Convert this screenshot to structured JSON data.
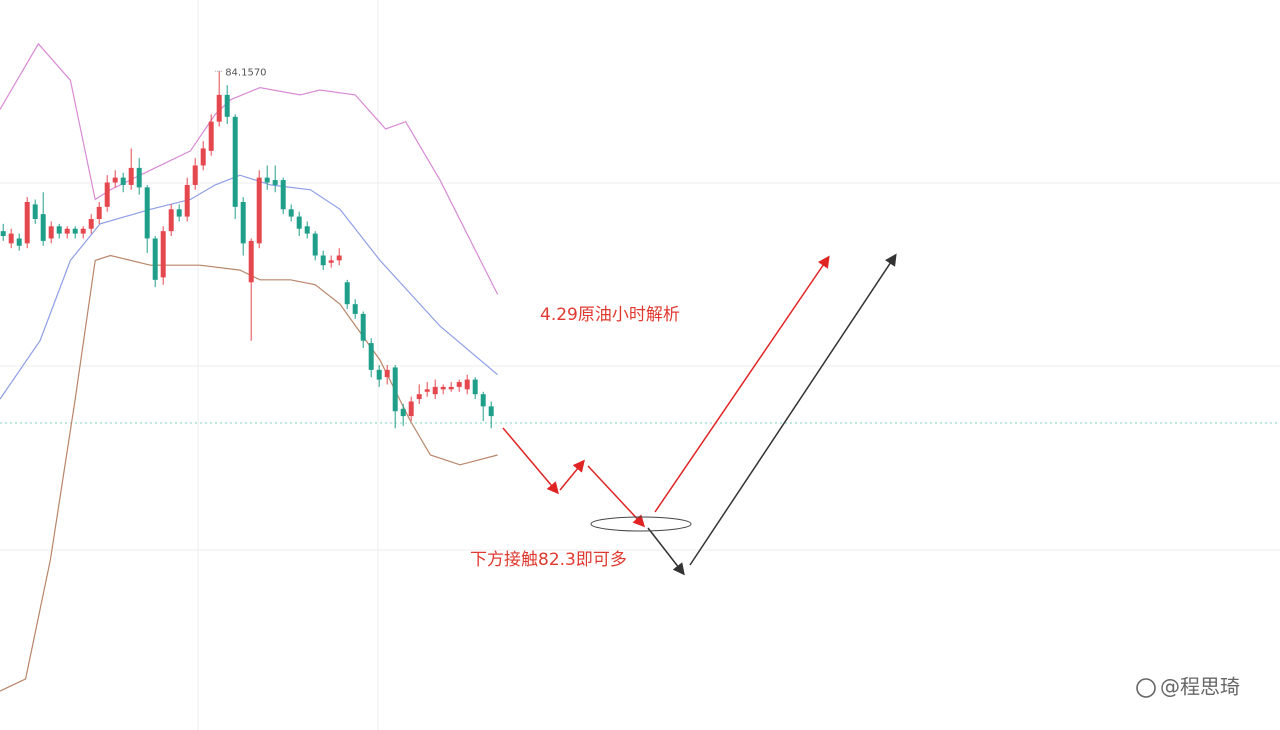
{
  "chart_data": {
    "type": "candlestick",
    "up_color": "#e5474e",
    "down_color": "#1f9e89",
    "xlim": [
      -0.4,
      159.6
    ],
    "ylim": [
      81.45,
      84.45
    ],
    "open": [
      83.5,
      83.45,
      83.47,
      83.45,
      83.61,
      83.57,
      83.47,
      83.52,
      83.49,
      83.51,
      83.49,
      83.51,
      83.55,
      83.6,
      83.7,
      83.72,
      83.69,
      83.76,
      83.68,
      83.47,
      83.31,
      83.5,
      83.59,
      83.56,
      83.69,
      83.77,
      83.83,
      83.95,
      84.06,
      83.97,
      83.62,
      83.29,
      83.45,
      83.72,
      83.71,
      83.71,
      83.59,
      83.56,
      83.52,
      83.49,
      83.4,
      83.37,
      83.38,
      83.29,
      83.2,
      83.16,
      83.04,
      82.93,
      82.9,
      82.94,
      82.77,
      82.74,
      82.81,
      82.84,
      82.83,
      82.85,
      82.85,
      82.86,
      82.85,
      82.89,
      82.83,
      82.78
    ],
    "high": [
      83.53,
      83.51,
      83.49,
      83.64,
      83.63,
      83.66,
      83.54,
      83.53,
      83.52,
      83.52,
      83.52,
      83.57,
      83.62,
      83.73,
      83.75,
      83.74,
      83.84,
      83.8,
      83.69,
      83.48,
      83.52,
      83.61,
      83.61,
      83.72,
      83.8,
      83.87,
      83.98,
      84.157,
      84.1,
      83.98,
      83.64,
      83.47,
      83.75,
      83.77,
      83.77,
      83.72,
      83.61,
      83.58,
      83.54,
      83.5,
      83.42,
      83.4,
      83.43,
      83.3,
      83.22,
      83.17,
      83.06,
      82.95,
      82.95,
      82.95,
      82.79,
      82.82,
      82.87,
      82.88,
      82.89,
      82.87,
      82.88,
      82.89,
      82.91,
      82.9,
      82.84,
      82.8
    ],
    "low": [
      83.46,
      83.43,
      83.42,
      83.43,
      83.53,
      83.44,
      83.45,
      83.47,
      83.47,
      83.47,
      83.47,
      83.49,
      83.53,
      83.58,
      83.68,
      83.66,
      83.67,
      83.65,
      83.41,
      83.27,
      83.28,
      83.48,
      83.54,
      83.54,
      83.67,
      83.75,
      83.81,
      83.93,
      83.94,
      83.55,
      83.4,
      83.05,
      83.43,
      83.67,
      83.66,
      83.57,
      83.54,
      83.48,
      83.47,
      83.38,
      83.34,
      83.35,
      83.36,
      83.18,
      83.14,
      83.02,
      82.9,
      82.86,
      82.87,
      82.69,
      82.7,
      82.72,
      82.79,
      82.82,
      82.81,
      82.83,
      82.84,
      82.84,
      82.83,
      82.81,
      82.72,
      82.69
    ],
    "close": [
      83.48,
      83.49,
      83.44,
      83.62,
      83.55,
      83.46,
      83.52,
      83.49,
      83.51,
      83.49,
      83.51,
      83.55,
      83.6,
      83.7,
      83.72,
      83.69,
      83.76,
      83.68,
      83.47,
      83.3,
      83.5,
      83.59,
      83.56,
      83.69,
      83.77,
      83.84,
      83.95,
      84.06,
      83.97,
      83.6,
      83.45,
      83.46,
      83.72,
      83.7,
      83.69,
      83.59,
      83.56,
      83.51,
      83.49,
      83.4,
      83.36,
      83.38,
      83.4,
      83.2,
      83.16,
      83.05,
      82.93,
      82.89,
      82.93,
      82.76,
      82.74,
      82.8,
      82.83,
      82.85,
      82.86,
      82.86,
      82.86,
      82.88,
      82.89,
      82.83,
      82.78,
      82.74
    ],
    "bands": [
      {
        "color": "#d98ad6",
        "x": [
          -0.4,
          4.4,
          8.4,
          11.5,
          13.4,
          17.1,
          23.4,
          26.5,
          28.4,
          32.1,
          37.1,
          39.6,
          44,
          47.8,
          50.3,
          54.6,
          61.8
        ],
        "values": [
          84.0,
          84.27,
          84.12,
          83.63,
          83.67,
          83.73,
          83.83,
          83.98,
          84.04,
          84.09,
          84.06,
          84.08,
          84.06,
          83.92,
          83.95,
          83.71,
          83.24
        ]
      },
      {
        "color": "#8d9ee6",
        "x": [
          -0.4,
          4.6,
          8.4,
          12.1,
          18.4,
          23.4,
          26.5,
          29.6,
          33.4,
          38.4,
          42.1,
          47.1,
          54.6,
          61.8
        ],
        "values": [
          82.81,
          83.05,
          83.38,
          83.53,
          83.59,
          83.63,
          83.69,
          83.73,
          83.69,
          83.67,
          83.59,
          83.38,
          83.11,
          82.91
        ]
      },
      {
        "color": "#b98569",
        "x": [
          -0.4,
          2.8,
          5.9,
          9,
          11.5,
          13.4,
          18.4,
          24.6,
          29.6,
          32.1,
          35.9,
          39,
          42.1,
          47.1,
          50.9,
          53.4,
          57.1,
          61.8
        ],
        "values": [
          81.61,
          81.66,
          82.15,
          82.81,
          83.38,
          83.4,
          83.36,
          83.36,
          83.34,
          83.3,
          83.3,
          83.28,
          83.2,
          82.97,
          82.72,
          82.58,
          82.54,
          82.58
        ]
      }
    ],
    "high_label": "84.1570",
    "annotations": [
      "4.29原油小时解析",
      "下方接触82.3即可多"
    ],
    "watermark": "@程思琦"
  }
}
